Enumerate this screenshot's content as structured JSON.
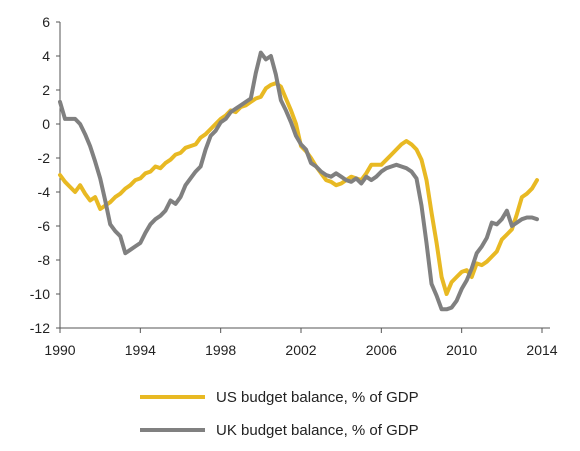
{
  "chart_data": {
    "type": "line",
    "xlim": [
      1990,
      2014
    ],
    "ylim": [
      -12,
      6
    ],
    "x_ticks": [
      1990,
      1994,
      1998,
      2002,
      2006,
      2010,
      2014
    ],
    "y_ticks": [
      6,
      4,
      2,
      0,
      -2,
      -4,
      -6,
      -8,
      -10,
      -12
    ],
    "grid": false,
    "legend_position": "bottom-center",
    "series": [
      {
        "name": "US budget balance, % of GDP",
        "color": "#E8B923",
        "x": [
          1990.0,
          1990.25,
          1990.5,
          1990.75,
          1991.0,
          1991.25,
          1991.5,
          1991.75,
          1992.0,
          1992.25,
          1992.5,
          1992.75,
          1993.0,
          1993.25,
          1993.5,
          1993.75,
          1994.0,
          1994.25,
          1994.5,
          1994.75,
          1995.0,
          1995.25,
          1995.5,
          1995.75,
          1996.0,
          1996.25,
          1996.5,
          1996.75,
          1997.0,
          1997.25,
          1997.5,
          1997.75,
          1998.0,
          1998.25,
          1998.5,
          1998.75,
          1999.0,
          1999.25,
          1999.5,
          1999.75,
          2000.0,
          2000.25,
          2000.5,
          2000.75,
          2001.0,
          2001.25,
          2001.5,
          2001.75,
          2002.0,
          2002.25,
          2002.5,
          2002.75,
          2003.0,
          2003.25,
          2003.5,
          2003.75,
          2004.0,
          2004.25,
          2004.5,
          2004.75,
          2005.0,
          2005.25,
          2005.5,
          2005.75,
          2006.0,
          2006.25,
          2006.5,
          2006.75,
          2007.0,
          2007.25,
          2007.5,
          2007.75,
          2008.0,
          2008.25,
          2008.5,
          2008.75,
          2009.0,
          2009.25,
          2009.5,
          2009.75,
          2010.0,
          2010.25,
          2010.5,
          2010.75,
          2011.0,
          2011.25,
          2011.5,
          2011.75,
          2012.0,
          2012.25,
          2012.5,
          2012.75,
          2013.0,
          2013.25,
          2013.5,
          2013.75
        ],
        "y": [
          -3.0,
          -3.4,
          -3.7,
          -4.0,
          -3.6,
          -4.1,
          -4.5,
          -4.3,
          -5.0,
          -4.8,
          -4.6,
          -4.3,
          -4.1,
          -3.8,
          -3.6,
          -3.3,
          -3.2,
          -2.9,
          -2.8,
          -2.5,
          -2.6,
          -2.3,
          -2.1,
          -1.8,
          -1.7,
          -1.4,
          -1.3,
          -1.2,
          -0.8,
          -0.6,
          -0.3,
          0.0,
          0.3,
          0.5,
          0.8,
          0.7,
          1.0,
          1.1,
          1.3,
          1.5,
          1.6,
          2.1,
          2.3,
          2.4,
          2.2,
          1.5,
          0.8,
          0.0,
          -1.3,
          -1.6,
          -2.0,
          -2.5,
          -2.9,
          -3.3,
          -3.4,
          -3.6,
          -3.5,
          -3.3,
          -3.1,
          -3.2,
          -3.3,
          -2.9,
          -2.4,
          -2.4,
          -2.4,
          -2.1,
          -1.8,
          -1.5,
          -1.2,
          -1.0,
          -1.2,
          -1.5,
          -2.1,
          -3.3,
          -5.2,
          -7.0,
          -9.0,
          -10.0,
          -9.3,
          -9.0,
          -8.7,
          -8.6,
          -9.0,
          -8.2,
          -8.3,
          -8.1,
          -7.8,
          -7.5,
          -6.8,
          -6.5,
          -6.2,
          -5.3,
          -4.3,
          -4.1,
          -3.8,
          -3.3
        ]
      },
      {
        "name": "UK budget balance, % of GDP",
        "color": "#808080",
        "x": [
          1990.0,
          1990.25,
          1990.5,
          1990.75,
          1991.0,
          1991.25,
          1991.5,
          1991.75,
          1992.0,
          1992.25,
          1992.5,
          1992.75,
          1993.0,
          1993.25,
          1993.5,
          1993.75,
          1994.0,
          1994.25,
          1994.5,
          1994.75,
          1995.0,
          1995.25,
          1995.5,
          1995.75,
          1996.0,
          1996.25,
          1996.5,
          1996.75,
          1997.0,
          1997.25,
          1997.5,
          1997.75,
          1998.0,
          1998.25,
          1998.5,
          1998.75,
          1999.0,
          1999.25,
          1999.5,
          1999.75,
          2000.0,
          2000.25,
          2000.5,
          2000.75,
          2001.0,
          2001.25,
          2001.5,
          2001.75,
          2002.0,
          2002.25,
          2002.5,
          2002.75,
          2003.0,
          2003.25,
          2003.5,
          2003.75,
          2004.0,
          2004.25,
          2004.5,
          2004.75,
          2005.0,
          2005.25,
          2005.5,
          2005.75,
          2006.0,
          2006.25,
          2006.5,
          2006.75,
          2007.0,
          2007.25,
          2007.5,
          2007.75,
          2008.0,
          2008.25,
          2008.5,
          2008.75,
          2009.0,
          2009.25,
          2009.5,
          2009.75,
          2010.0,
          2010.25,
          2010.5,
          2010.75,
          2011.0,
          2011.25,
          2011.5,
          2011.75,
          2012.0,
          2012.25,
          2012.5,
          2012.75,
          2013.0,
          2013.25,
          2013.5,
          2013.75
        ],
        "y": [
          1.3,
          0.3,
          0.3,
          0.3,
          0.0,
          -0.6,
          -1.3,
          -2.2,
          -3.2,
          -4.5,
          -5.9,
          -6.3,
          -6.6,
          -7.6,
          -7.4,
          -7.2,
          -7.0,
          -6.4,
          -5.9,
          -5.6,
          -5.4,
          -5.1,
          -4.5,
          -4.7,
          -4.3,
          -3.6,
          -3.2,
          -2.8,
          -2.5,
          -1.5,
          -0.7,
          -0.4,
          0.1,
          0.3,
          0.7,
          0.9,
          1.1,
          1.3,
          1.5,
          3.0,
          4.2,
          3.8,
          4.0,
          2.9,
          1.4,
          0.8,
          0.1,
          -0.7,
          -1.2,
          -1.5,
          -2.3,
          -2.5,
          -2.8,
          -3.0,
          -3.1,
          -2.9,
          -3.1,
          -3.3,
          -3.4,
          -3.2,
          -3.5,
          -3.1,
          -3.3,
          -3.1,
          -2.8,
          -2.6,
          -2.5,
          -2.4,
          -2.5,
          -2.6,
          -2.8,
          -3.2,
          -4.8,
          -7.0,
          -9.4,
          -10.1,
          -10.9,
          -10.9,
          -10.8,
          -10.4,
          -9.7,
          -9.2,
          -8.5,
          -7.6,
          -7.2,
          -6.7,
          -5.8,
          -5.9,
          -5.6,
          -5.1,
          -6.0,
          -5.8,
          -5.6,
          -5.5,
          -5.5,
          -5.6
        ]
      }
    ]
  }
}
